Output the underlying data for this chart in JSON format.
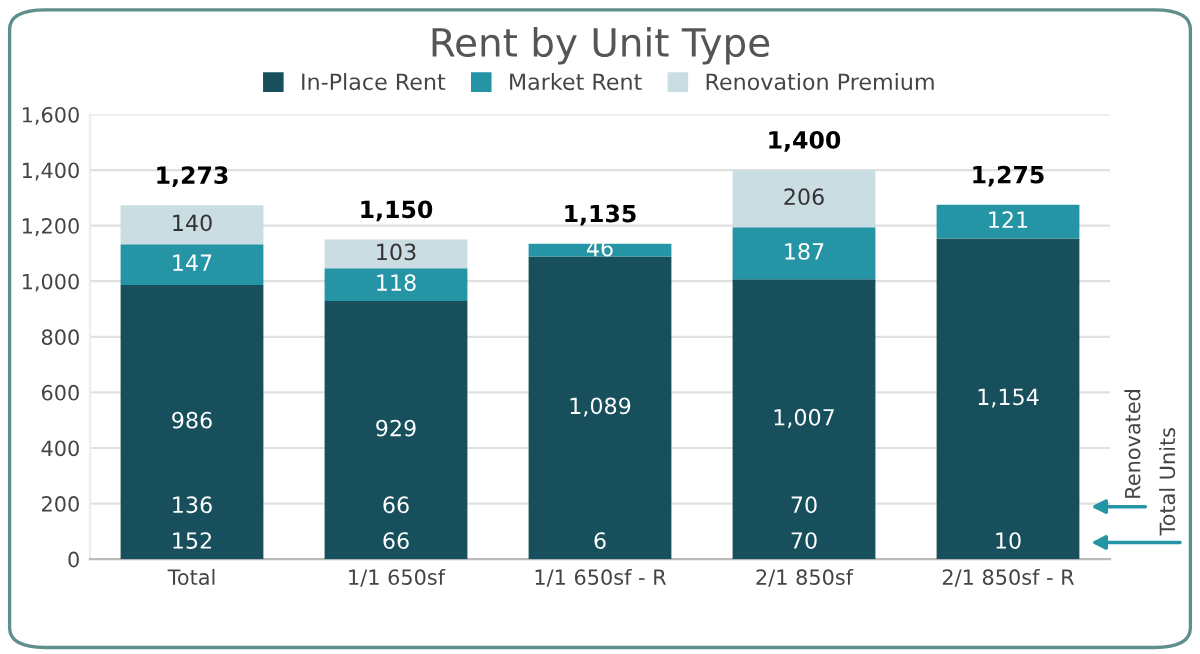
{
  "chart_data": {
    "type": "bar",
    "title": "Rent by Unit Type",
    "stacked": true,
    "categories": [
      "Total",
      "1/1 650sf",
      "1/1 650sf - R",
      "2/1 850sf",
      "2/1 850sf - R"
    ],
    "series": [
      {
        "name": "In-Place Rent",
        "color": "#17505c",
        "values": [
          986,
          929,
          1089,
          1007,
          1154
        ],
        "value_labels": [
          "986",
          "929",
          "1,089",
          "1,007",
          "1,154"
        ]
      },
      {
        "name": "Market Rent",
        "color": "#2595a6",
        "values": [
          147,
          118,
          46,
          187,
          121
        ],
        "value_labels": [
          "147",
          "118",
          "46",
          "187",
          "121"
        ]
      },
      {
        "name": "Renovation Premium",
        "color": "#c9dde3",
        "values": [
          140,
          103,
          null,
          206,
          null
        ],
        "value_labels": [
          "140",
          "103",
          null,
          "206",
          null
        ]
      }
    ],
    "totals": [
      "1,273",
      "1,150",
      "1,135",
      "1,400",
      "1,275"
    ],
    "ylim": [
      0,
      1600
    ],
    "yticks": [
      0,
      200,
      400,
      600,
      800,
      {
        "value": 1000,
        "label": "1,000"
      },
      {
        "value": 1200,
        "label": "1,200"
      },
      {
        "value": 1400,
        "label": "1,400"
      },
      {
        "value": 1600,
        "label": "1,600"
      }
    ],
    "grid": "y",
    "legend": "top",
    "annotations": [
      "136",
      "66",
      "70",
      "152",
      "66",
      "6",
      "70",
      "10",
      "Renovated",
      "Total Units"
    ]
  }
}
